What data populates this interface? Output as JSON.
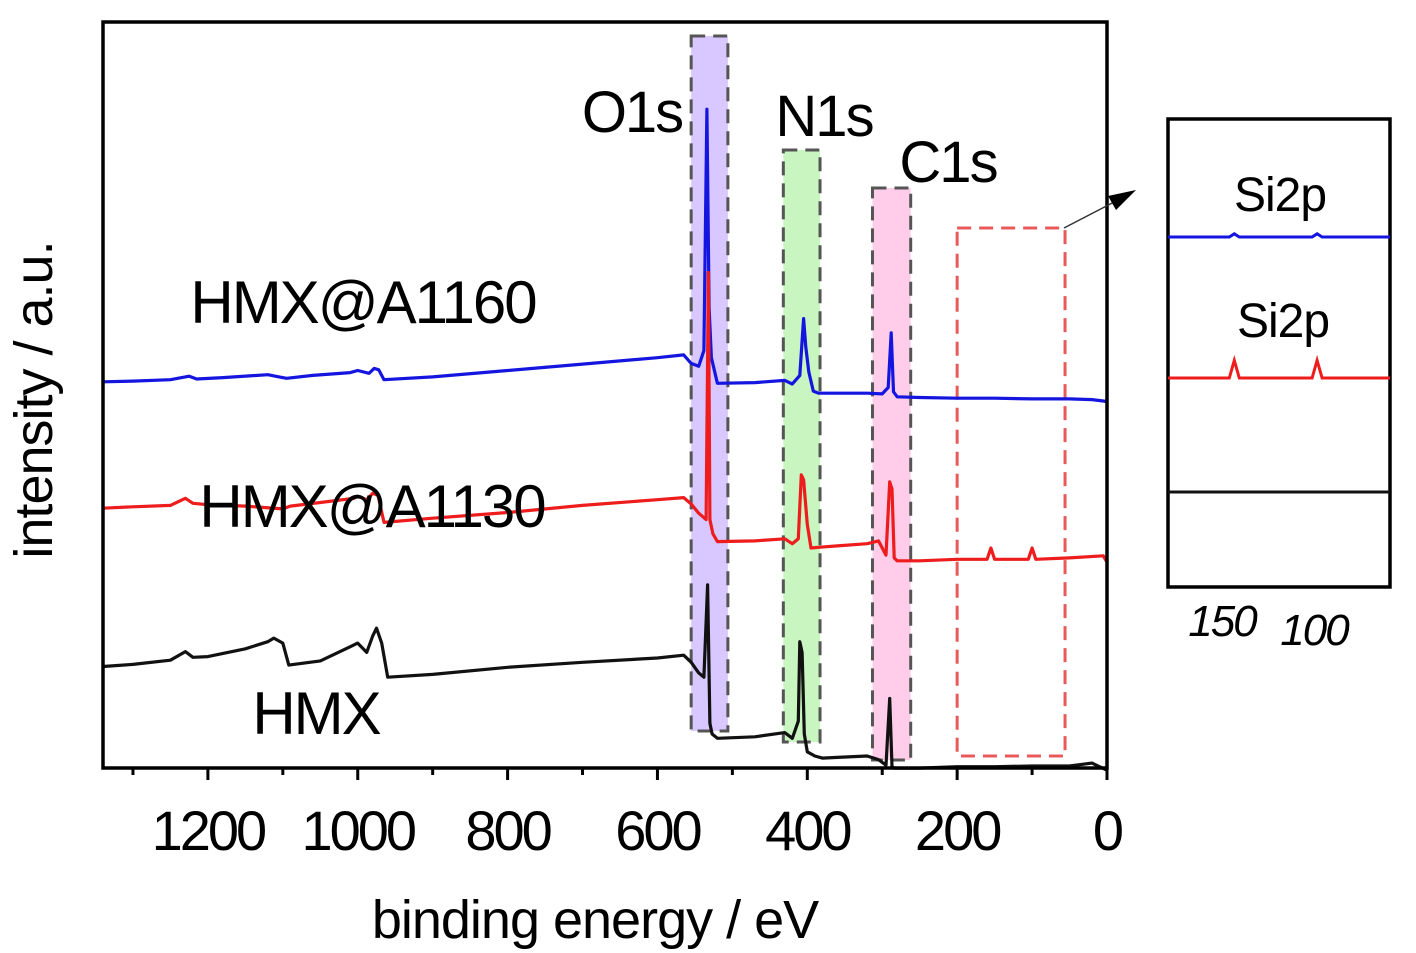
{
  "chart_data": {
    "type": "line",
    "xlabel": "binding energy / eV",
    "ylabel": "intensity / a.u.",
    "xlim": [
      1340,
      0
    ],
    "x_ticks": [
      1200,
      1000,
      800,
      600,
      400,
      200,
      0
    ],
    "y_ticks": "none",
    "grid": false,
    "legend": "none",
    "series": [
      {
        "name": "HMX@A1160",
        "color": "#1515e0",
        "x": [
          1340,
          1300,
          1250,
          1225,
          1215,
          1180,
          1120,
          1105,
          1095,
          1060,
          1010,
          1000,
          985,
          978,
          972,
          965,
          900,
          800,
          700,
          600,
          565,
          555,
          545,
          538,
          534,
          531,
          528,
          520,
          470,
          430,
          420,
          410,
          405,
          402,
          398,
          392,
          385,
          360,
          320,
          300,
          292,
          288,
          285,
          280,
          250,
          200,
          150,
          100,
          50,
          20,
          5,
          0
        ],
        "y": [
          9.6,
          9.7,
          9.9,
          10.4,
          10.0,
          10.2,
          10.6,
          10.3,
          10.1,
          10.5,
          10.9,
          11.2,
          10.8,
          11.5,
          11.3,
          9.9,
          10.3,
          11.2,
          12.1,
          13.0,
          13.4,
          12.2,
          11.8,
          14,
          48,
          20,
          13,
          9.4,
          9.5,
          9.8,
          9.3,
          10.5,
          18.5,
          14.5,
          11,
          8.3,
          8.0,
          8.0,
          8.0,
          7.9,
          8.8,
          16.5,
          8.2,
          7.5,
          7.4,
          7.3,
          7.3,
          7.2,
          7.2,
          7.1,
          6.9,
          6.8
        ]
      },
      {
        "name": "HMX@A1130",
        "color": "#ee1c1c",
        "x": [
          1340,
          1300,
          1250,
          1230,
          1220,
          1200,
          1150,
          1100,
          1090,
          1050,
          1005,
          1000,
          988,
          980,
          973,
          965,
          900,
          800,
          700,
          600,
          565,
          555,
          545,
          535,
          532,
          530,
          526,
          520,
          470,
          430,
          420,
          412,
          408,
          405,
          400,
          395,
          385,
          360,
          320,
          305,
          295,
          290,
          287,
          284,
          280,
          250,
          200,
          160,
          155,
          150,
          105,
          100,
          95,
          50,
          5,
          0
        ],
        "y": [
          -8.2,
          -8.0,
          -7.8,
          -6.8,
          -7.5,
          -7.7,
          -7.9,
          -8.3,
          -7.9,
          -7.4,
          -6.8,
          -6.5,
          -7.0,
          -6.1,
          -6.4,
          -10.2,
          -9.6,
          -8.8,
          -7.8,
          -7.0,
          -6.7,
          -7.6,
          -8.9,
          -9.8,
          25,
          -9.8,
          -11.8,
          -12.9,
          -12.8,
          -12.5,
          -13.2,
          -12.5,
          -3.5,
          -4.2,
          -10.5,
          -13.8,
          -13.7,
          -13.5,
          -13.2,
          -12.8,
          -14.8,
          -4.5,
          -5.5,
          -15.2,
          -15.6,
          -15.6,
          -15.4,
          -15.4,
          -13.8,
          -15.4,
          -15.4,
          -13.8,
          -15.4,
          -15.2,
          -14.9,
          -15.8
        ]
      },
      {
        "name": "HMX",
        "color": "#111111",
        "x": [
          1340,
          1300,
          1250,
          1230,
          1220,
          1200,
          1150,
          1120,
          1112,
          1100,
          1092,
          1050,
          1010,
          1000,
          988,
          980,
          975,
          968,
          960,
          900,
          800,
          700,
          600,
          565,
          555,
          545,
          538,
          533,
          530,
          527,
          520,
          470,
          430,
          420,
          412,
          410,
          407,
          404,
          400,
          390,
          380,
          360,
          320,
          305,
          295,
          290,
          287,
          284,
          280,
          250,
          200,
          150,
          100,
          50,
          20,
          10,
          0
        ],
        "y": [
          -30.5,
          -30.2,
          -29.6,
          -28.4,
          -29.2,
          -29.1,
          -28.0,
          -27.0,
          -26.5,
          -27.2,
          -30.3,
          -29.7,
          -27.7,
          -27.2,
          -28.5,
          -26.2,
          -25.1,
          -27.2,
          -32.0,
          -31.6,
          -30.6,
          -29.9,
          -29.3,
          -28.9,
          -29.9,
          -31.4,
          -32,
          -19,
          -38.5,
          -40.0,
          -40.6,
          -40.4,
          -39.8,
          -40.6,
          -38.2,
          -27,
          -28.5,
          -40,
          -42.5,
          -43.1,
          -43.4,
          -43.3,
          -43.1,
          -43.6,
          -44.4,
          -35,
          -44.6,
          -44.8,
          -44.8,
          -44.8,
          -44.6,
          -44.6,
          -44.5,
          -44.5,
          -44.1,
          -44.6,
          -45.1
        ]
      }
    ],
    "peak_labels": [
      "O1s",
      "N1s",
      "C1s"
    ],
    "series_labels": [
      "HMX@A1160",
      "HMX@A1130",
      "HMX"
    ],
    "highlight_regions": [
      {
        "label": "O1s",
        "x_range": [
          555,
          506
        ],
        "color": "#d8c8ff"
      },
      {
        "label": "N1s",
        "x_range": [
          432,
          383
        ],
        "color": "#c8f5c0"
      },
      {
        "label": "C1s",
        "x_range": [
          313,
          262
        ],
        "color": "#ffcdea"
      }
    ],
    "zoom_region": {
      "x_range": [
        200,
        56
      ],
      "color": "#e85a5a"
    },
    "inset": {
      "labels": [
        "Si2p",
        "Si2p"
      ],
      "x_ticks": [
        150,
        100
      ],
      "x_tick_labels": [
        "150",
        "100"
      ],
      "series": [
        {
          "name": "HMX@A1160",
          "color": "#1515e0",
          "peaks_at": [
            150,
            100
          ],
          "peak_height": 0.4
        },
        {
          "name": "HMX@A1130",
          "color": "#ee1c1c",
          "peaks_at": [
            150,
            100
          ],
          "peak_height": 2.2
        },
        {
          "name": "HMX",
          "color": "#111111",
          "peaks_at": [],
          "peak_height": 0
        }
      ]
    }
  }
}
